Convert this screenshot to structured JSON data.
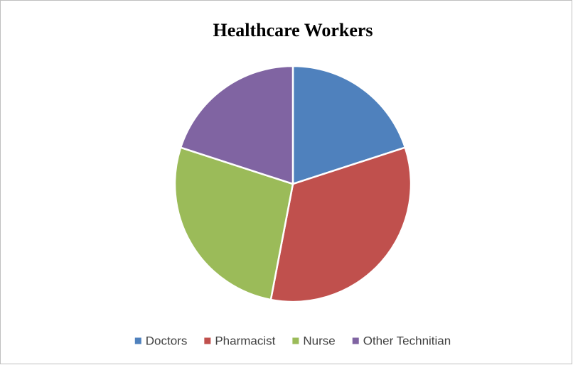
{
  "chart_data": {
    "type": "pie",
    "title": "Healthcare Workers",
    "categories": [
      "Doctors",
      "Pharmacist",
      "Nurse",
      "Other Technitian"
    ],
    "values": [
      20,
      33,
      27,
      20
    ],
    "colors": [
      "#4f81bd",
      "#c0504d",
      "#9bbb59",
      "#8064a2"
    ],
    "legend": "bottom"
  }
}
